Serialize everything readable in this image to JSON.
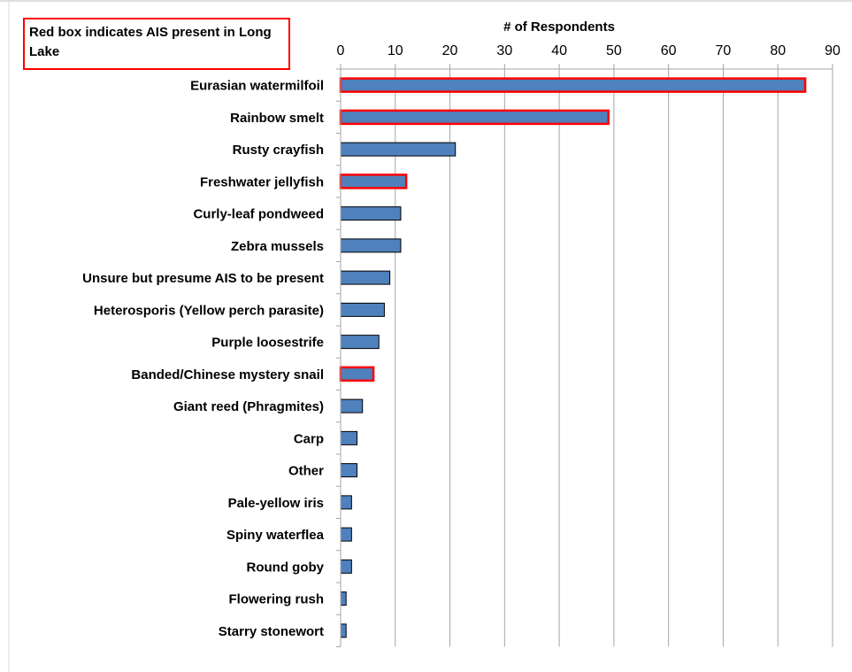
{
  "chart_data": {
    "type": "bar",
    "orientation": "horizontal",
    "xlabel": "# of Respondents",
    "xlim": [
      0,
      90
    ],
    "xticks": [
      0,
      10,
      20,
      30,
      40,
      50,
      60,
      70,
      80,
      90
    ],
    "grid": true,
    "axis_position": "top",
    "categories": [
      "Eurasian watermilfoil",
      "Rainbow smelt",
      "Rusty crayfish",
      "Freshwater jellyfish",
      "Curly-leaf pondweed",
      "Zebra mussels",
      "Unsure but presume AIS to be present",
      "Heterosporis (Yellow perch parasite)",
      "Purple loosestrife",
      "Banded/Chinese mystery snail",
      "Giant reed (Phragmites)",
      "Carp",
      "Other",
      "Pale-yellow iris",
      "Spiny waterflea",
      "Round goby",
      "Flowering rush",
      "Starry stonewort"
    ],
    "values": [
      85,
      49,
      21,
      12,
      11,
      11,
      9,
      8,
      7,
      6,
      4,
      3,
      3,
      2,
      2,
      2,
      1,
      1
    ],
    "highlighted": [
      true,
      true,
      false,
      true,
      false,
      false,
      false,
      false,
      false,
      true,
      false,
      false,
      false,
      false,
      false,
      false,
      false,
      false
    ],
    "annotation": "Red box indicates AIS present in Long Lake",
    "colors": {
      "bar": "#4F81BD",
      "bar_edge": "#000000",
      "highlight_edge": "#FF0000",
      "grid": "#A6A6A6",
      "text": "#000000"
    }
  }
}
